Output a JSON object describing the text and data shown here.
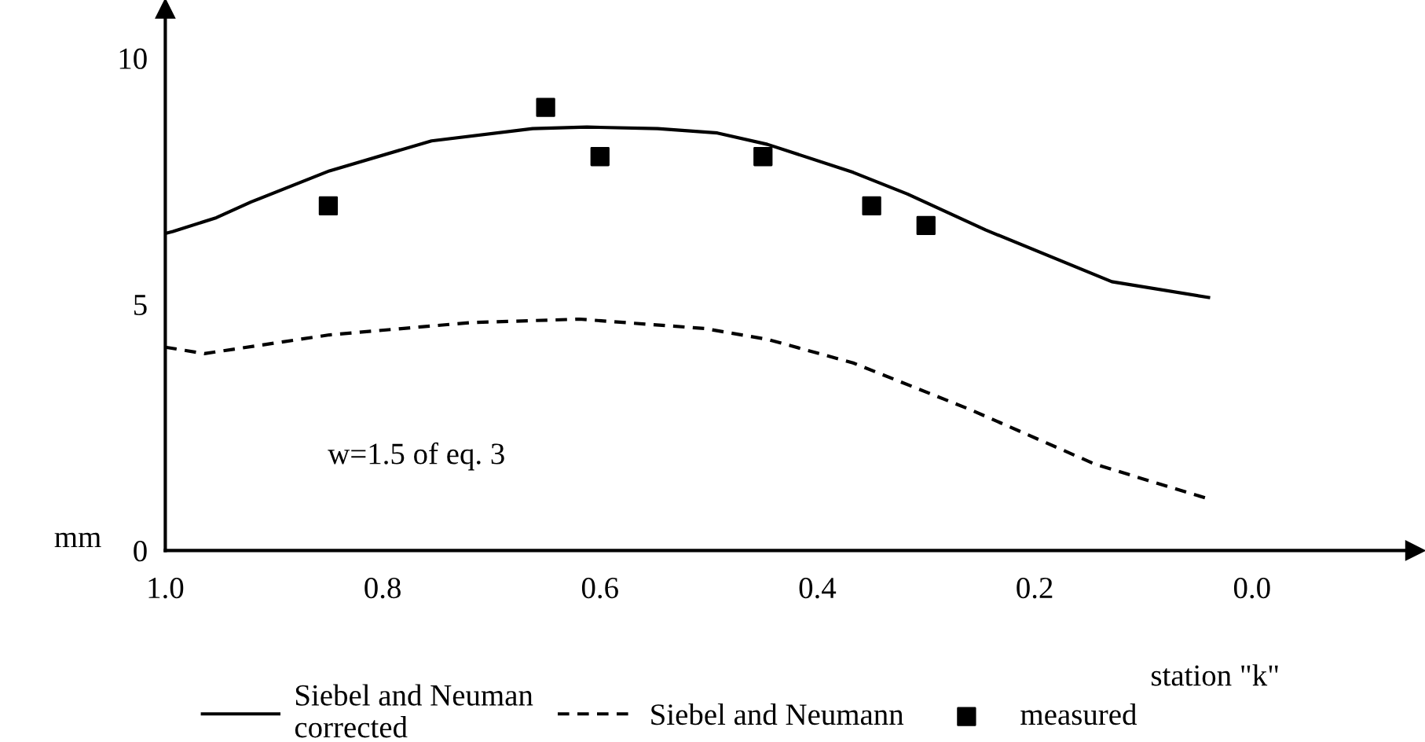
{
  "chart_data": {
    "type": "line",
    "xlabel": "station \"k\"",
    "ylabel": "mm",
    "xlim": [
      1.0,
      -0.15
    ],
    "ylim": [
      0,
      11
    ],
    "xticks": [
      {
        "value": 1.0,
        "label": "1.0"
      },
      {
        "value": 0.8,
        "label": "0.8"
      },
      {
        "value": 0.6,
        "label": "0.6"
      },
      {
        "value": 0.4,
        "label": "0.4"
      },
      {
        "value": 0.2,
        "label": "0.2"
      },
      {
        "value": 0.0,
        "label": "0.0"
      }
    ],
    "yticks": [
      0,
      5,
      10
    ],
    "grid": false,
    "legend": "bottom",
    "annotations": [
      "w=1.5 of eq. 3"
    ],
    "series": [
      {
        "name": "Siebel and Neuman\ncorrected",
        "line_style": "solid",
        "color": "#000000",
        "x": [
          1.0,
          0.993,
          0.953,
          0.921,
          0.849,
          0.755,
          0.662,
          0.612,
          0.547,
          0.492,
          0.446,
          0.367,
          0.317,
          0.245,
          0.129,
          0.04
        ],
        "values": [
          6.44,
          6.48,
          6.76,
          7.08,
          7.71,
          8.32,
          8.57,
          8.6,
          8.57,
          8.48,
          8.25,
          7.68,
          7.24,
          6.51,
          5.46,
          5.14
        ]
      },
      {
        "name": "Siebel and Neumann",
        "line_style": "dashed",
        "color": "#000000",
        "x": [
          1.0,
          0.964,
          0.849,
          0.719,
          0.619,
          0.504,
          0.446,
          0.367,
          0.259,
          0.144,
          0.04
        ],
        "values": [
          4.13,
          4.0,
          4.38,
          4.63,
          4.7,
          4.51,
          4.29,
          3.81,
          2.86,
          1.75,
          1.05
        ]
      },
      {
        "name": "measured",
        "type": "scatter",
        "marker": "square",
        "color": "#000000",
        "x": [
          0.85,
          0.65,
          0.6,
          0.45,
          0.35,
          0.3
        ],
        "values": [
          7.0,
          9.0,
          8.0,
          8.0,
          7.0,
          6.6
        ]
      }
    ]
  }
}
